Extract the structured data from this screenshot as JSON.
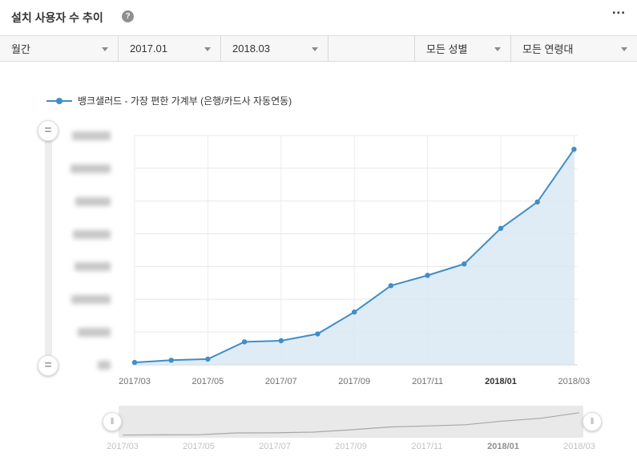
{
  "header": {
    "title": "설치 사용자 수 추이",
    "help_icon": "?",
    "menu_icon": "..."
  },
  "filters": [
    {
      "label": "월간"
    },
    {
      "label": "2017.01"
    },
    {
      "label": "2018.03"
    },
    {
      "label": "모든 성별"
    },
    {
      "label": "모든 연령대"
    }
  ],
  "legend": {
    "series_label": "뱅크샐러드 - 가장 편한 가계부 (은행/카드사 자동연동)",
    "color": "#3e8ec9"
  },
  "chart_data": {
    "type": "area",
    "title": "설치 사용자 수 추이",
    "x": [
      "2017/03",
      "2017/04",
      "2017/05",
      "2017/06",
      "2017/07",
      "2017/08",
      "2017/09",
      "2017/10",
      "2017/11",
      "2017/12",
      "2018/01",
      "2018/02",
      "2018/03"
    ],
    "values": [
      1,
      2,
      2.5,
      10,
      10.5,
      13.5,
      23,
      34.5,
      39,
      44,
      59.5,
      71,
      94
    ],
    "x_tick_labels": [
      "2017/03",
      "2017/05",
      "2017/07",
      "2017/09",
      "2017/11",
      "2018/01",
      "2018/03"
    ],
    "bold_tick": "2018/01",
    "ylim": [
      0,
      100
    ],
    "y_tick_count": 8,
    "y_tick_labels_blurred": true,
    "grid": true,
    "legend_position": "top-left",
    "line_color": "#3e8ec9",
    "area_color": "#d9e8f3"
  },
  "navigator": {
    "labels": [
      "2017/03",
      "2017/05",
      "2017/07",
      "2017/09",
      "2017/11",
      "2018/01",
      "2018/03"
    ],
    "bold_label": "2018/01"
  }
}
